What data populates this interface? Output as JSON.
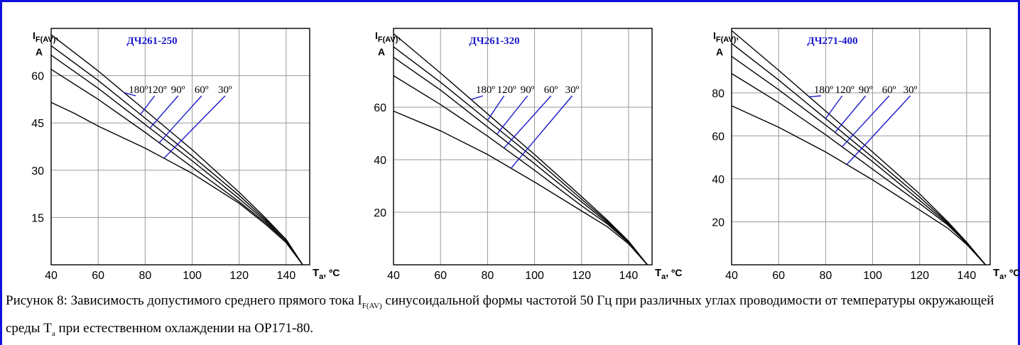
{
  "colors": {
    "frame": "#1010e0",
    "title": "#1a1acc",
    "pointer": "#1a1acc",
    "curve": "#000000"
  },
  "chart_data": [
    {
      "type": "line",
      "title": "ДЧ261-250",
      "ylabel": {
        "main": "I",
        "sub": "F(AV)",
        "suffix": ",",
        "unit": "A"
      },
      "xlabel": {
        "main": "T",
        "sub": "a",
        "suffix": ", ºC"
      },
      "xlim": [
        40,
        150
      ],
      "ylim": [
        0,
        75
      ],
      "xticks": [
        40,
        60,
        80,
        100,
        120,
        140
      ],
      "yticks": [
        15,
        30,
        45,
        60
      ],
      "grid": true,
      "angle_labels": [
        "180º",
        "120º",
        "90º",
        "60º",
        "30º"
      ],
      "series": [
        {
          "name": "180º",
          "x": [
            40,
            60,
            80,
            100,
            120,
            131,
            140,
            147
          ],
          "y": [
            73.0,
            61.5,
            49.0,
            36.5,
            23.0,
            15.0,
            8.0,
            0
          ]
        },
        {
          "name": "120º",
          "x": [
            40,
            60,
            80,
            100,
            120,
            131,
            140,
            147
          ],
          "y": [
            69.5,
            58.5,
            46.5,
            34.5,
            22.0,
            14.5,
            8.0,
            0
          ]
        },
        {
          "name": "90º",
          "x": [
            40,
            60,
            80,
            100,
            120,
            131,
            140,
            147
          ],
          "y": [
            66.5,
            56.0,
            44.5,
            33.0,
            21.0,
            14.0,
            7.5,
            0
          ]
        },
        {
          "name": "60º",
          "x": [
            40,
            60,
            80,
            100,
            120,
            131,
            140,
            147
          ],
          "y": [
            62.0,
            52.5,
            42.0,
            31.0,
            20.0,
            13.5,
            7.5,
            0
          ]
        },
        {
          "name": "30º",
          "x": [
            40,
            50,
            60,
            80,
            100,
            120,
            131,
            140,
            147
          ],
          "y": [
            51.5,
            48.0,
            44.0,
            37.0,
            29.0,
            19.5,
            13.0,
            7.0,
            0
          ]
        }
      ],
      "pointers": [
        {
          "label_x": 73,
          "curve_x": 71
        },
        {
          "label_x": 81,
          "curve_x": 78
        },
        {
          "label_x": 91,
          "curve_x": 82
        },
        {
          "label_x": 101,
          "curve_x": 86
        },
        {
          "label_x": 111,
          "curve_x": 88
        }
      ]
    },
    {
      "type": "line",
      "title": "ДЧ261-320",
      "ylabel": {
        "main": "I",
        "sub": "F(AV)",
        "suffix": ",",
        "unit": "A"
      },
      "xlabel": {
        "main": "T",
        "sub": "a",
        "suffix": ", ºC"
      },
      "xlim": [
        40,
        150
      ],
      "ylim": [
        0,
        90
      ],
      "xticks": [
        40,
        60,
        80,
        100,
        120,
        140
      ],
      "yticks": [
        20,
        40,
        60
      ],
      "grid": true,
      "angle_labels": [
        "180º",
        "120º",
        "90º",
        "60º",
        "30º"
      ],
      "series": [
        {
          "name": "180º",
          "x": [
            40,
            60,
            80,
            100,
            120,
            131,
            140,
            148
          ],
          "y": [
            88.0,
            73.0,
            57.5,
            42.0,
            26.0,
            17.0,
            9.0,
            0
          ]
        },
        {
          "name": "120º",
          "x": [
            40,
            60,
            80,
            100,
            120,
            131,
            140,
            148
          ],
          "y": [
            83.0,
            69.5,
            55.0,
            40.5,
            25.0,
            16.5,
            9.0,
            0
          ]
        },
        {
          "name": "90º",
          "x": [
            40,
            60,
            80,
            100,
            120,
            131,
            140,
            148
          ],
          "y": [
            79.0,
            66.5,
            52.5,
            38.5,
            24.0,
            16.0,
            8.5,
            0
          ]
        },
        {
          "name": "60º",
          "x": [
            40,
            60,
            80,
            100,
            120,
            131,
            140,
            148
          ],
          "y": [
            72.0,
            61.0,
            49.0,
            36.0,
            22.5,
            15.5,
            8.5,
            0
          ]
        },
        {
          "name": "30º",
          "x": [
            40,
            60,
            80,
            100,
            120,
            131,
            140,
            148
          ],
          "y": [
            58.5,
            51.0,
            42.0,
            31.5,
            20.5,
            14.5,
            8.0,
            0
          ]
        }
      ],
      "pointers": [
        {
          "label_x": 75,
          "curve_x": 73
        },
        {
          "label_x": 84,
          "curve_x": 80
        },
        {
          "label_x": 94,
          "curve_x": 84
        },
        {
          "label_x": 104,
          "curve_x": 87
        },
        {
          "label_x": 113,
          "curve_x": 90
        }
      ]
    },
    {
      "type": "line",
      "title": "ДЧ271-400",
      "ylabel": {
        "main": "I",
        "sub": "F(AV)",
        "suffix": ",",
        "unit": "A"
      },
      "xlabel": {
        "main": "T",
        "sub": "a",
        "suffix": ", ºC"
      },
      "xlim": [
        40,
        150
      ],
      "ylim": [
        0,
        110
      ],
      "xticks": [
        40,
        60,
        80,
        100,
        120,
        140
      ],
      "yticks": [
        20,
        40,
        60,
        80
      ],
      "grid": true,
      "angle_labels": [
        "180º",
        "120º",
        "90º",
        "60º",
        "30º"
      ],
      "series": [
        {
          "name": "180º",
          "x": [
            40,
            60,
            80,
            100,
            120,
            132,
            140,
            148
          ],
          "y": [
            109.0,
            90.5,
            71.5,
            52.5,
            33.0,
            20.0,
            10.5,
            0
          ]
        },
        {
          "name": "120º",
          "x": [
            40,
            60,
            80,
            100,
            120,
            132,
            140,
            148
          ],
          "y": [
            103.0,
            86.0,
            68.0,
            50.0,
            31.5,
            19.5,
            10.5,
            0
          ]
        },
        {
          "name": "90º",
          "x": [
            40,
            60,
            80,
            100,
            120,
            132,
            140,
            148
          ],
          "y": [
            97.0,
            81.5,
            65.0,
            48.0,
            30.0,
            19.0,
            10.0,
            0
          ]
        },
        {
          "name": "60º",
          "x": [
            40,
            60,
            80,
            100,
            120,
            132,
            140,
            148
          ],
          "y": [
            89.0,
            75.5,
            60.5,
            44.5,
            28.5,
            18.5,
            10.0,
            0
          ]
        },
        {
          "name": "30º",
          "x": [
            40,
            60,
            80,
            100,
            120,
            132,
            140,
            148
          ],
          "y": [
            74.0,
            64.0,
            52.5,
            39.5,
            25.5,
            17.0,
            9.5,
            0
          ]
        }
      ],
      "pointers": [
        {
          "label_x": 75,
          "curve_x": 73
        },
        {
          "label_x": 84,
          "curve_x": 80
        },
        {
          "label_x": 94,
          "curve_x": 84
        },
        {
          "label_x": 104,
          "curve_x": 87
        },
        {
          "label_x": 113,
          "curve_x": 89
        }
      ]
    }
  ],
  "caption": {
    "part1": "Рисунок 8: Зависимость допустимого среднего прямого тока I",
    "sub1": "F(AV)",
    "part2": " синусоидальной формы частотой 50 Гц при различных углах проводимости от температуры окружающей среды T",
    "sub2": "a",
    "part3": " при естественном охлаждении на ОР171-80."
  }
}
